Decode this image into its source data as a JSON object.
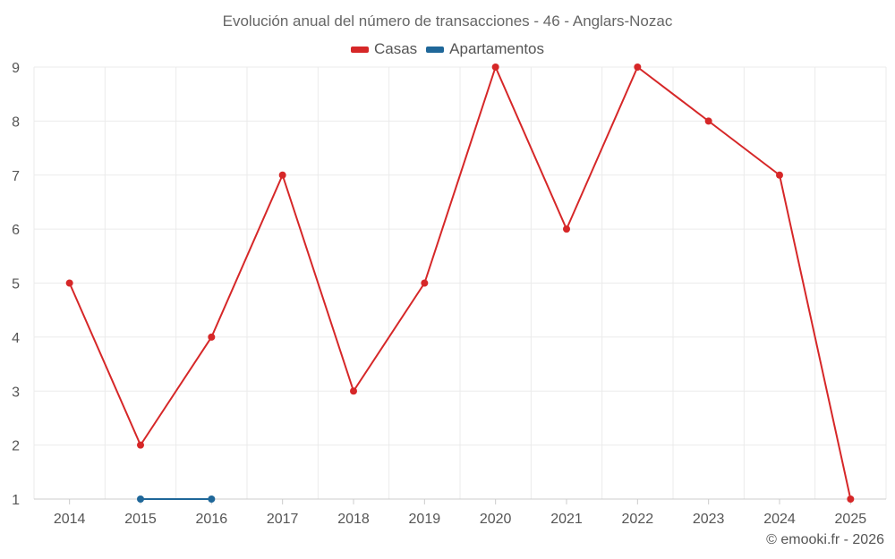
{
  "chart_data": {
    "type": "line",
    "title": "Evolución anual del número de transacciones - 46 - Anglars-Nozac",
    "categories": [
      "2014",
      "2015",
      "2016",
      "2017",
      "2018",
      "2019",
      "2020",
      "2021",
      "2022",
      "2023",
      "2024",
      "2025"
    ],
    "series": [
      {
        "name": "Casas",
        "color": "#d62728",
        "values": [
          5,
          2,
          4,
          7,
          3,
          5,
          9,
          6,
          9,
          8,
          7,
          1
        ]
      },
      {
        "name": "Apartamentos",
        "color": "#1f6799",
        "values": [
          null,
          1,
          1,
          null,
          null,
          null,
          null,
          null,
          null,
          null,
          null,
          null
        ]
      }
    ],
    "ylim": [
      1,
      9
    ],
    "yticks": [
      1,
      2,
      3,
      4,
      5,
      6,
      7,
      8,
      9
    ],
    "xlabel": "",
    "ylabel": "",
    "grid": true,
    "legend_position": "top-center"
  },
  "footer": {
    "credit": "© emooki.fr - 2026"
  }
}
